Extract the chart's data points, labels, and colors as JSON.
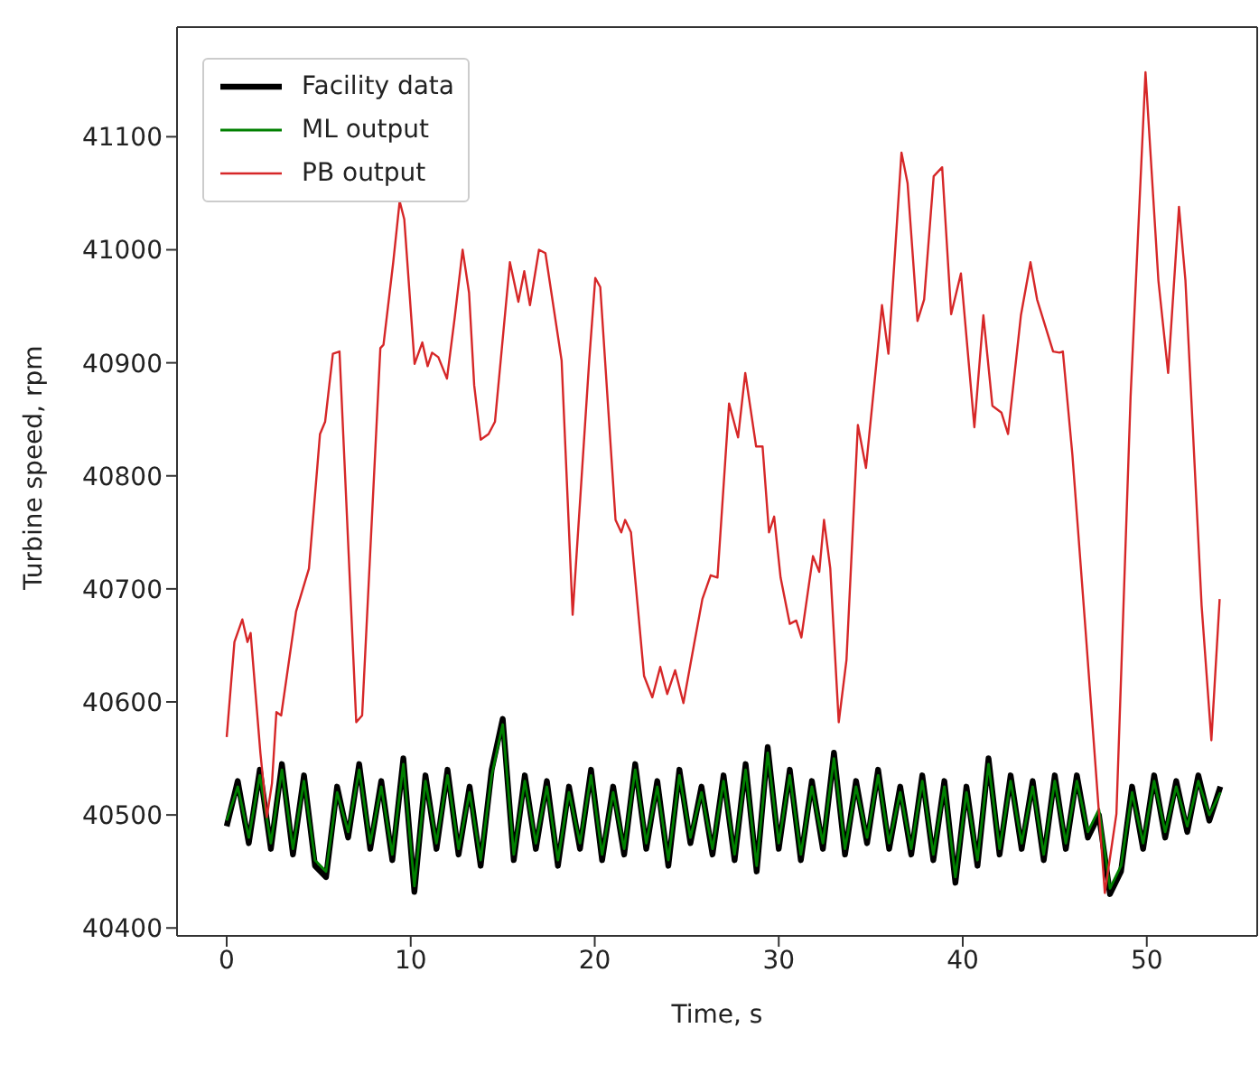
{
  "chart_data": {
    "type": "line",
    "xlabel": "Time, s",
    "ylabel": "Turbine speed, rpm",
    "xlim": [
      -2.7,
      56
    ],
    "ylim": [
      40393,
      41197
    ],
    "xticks": [
      0,
      10,
      20,
      30,
      40,
      50
    ],
    "yticks": [
      40400,
      40500,
      40600,
      40700,
      40800,
      40900,
      41000,
      41100
    ],
    "legend": "top left",
    "series": [
      {
        "name": "Facility data",
        "color": "#000000",
        "x": [
          0,
          0.6,
          1.2,
          1.8,
          2.4,
          3.0,
          3.6,
          4.2,
          4.8,
          5.4,
          6.0,
          6.6,
          7.2,
          7.8,
          8.4,
          9.0,
          9.6,
          10.2,
          10.8,
          11.4,
          12.0,
          12.6,
          13.2,
          13.8,
          14.4,
          15.0,
          15.6,
          16.2,
          16.8,
          17.4,
          18.0,
          18.6,
          19.2,
          19.8,
          20.4,
          21.0,
          21.6,
          22.2,
          22.8,
          23.4,
          24.0,
          24.6,
          25.2,
          25.8,
          26.4,
          27.0,
          27.6,
          28.2,
          28.8,
          29.4,
          30.0,
          30.6,
          31.2,
          31.8,
          32.4,
          33.0,
          33.6,
          34.2,
          34.8,
          35.4,
          36.0,
          36.6,
          37.2,
          37.8,
          38.4,
          39.0,
          39.6,
          40.2,
          40.8,
          41.4,
          42.0,
          42.6,
          43.2,
          43.8,
          44.4,
          45.0,
          45.6,
          46.2,
          46.8,
          47.4,
          48.0,
          48.6,
          49.2,
          49.8,
          50.4,
          51.0,
          51.6,
          52.2,
          52.8,
          53.4,
          54.0
        ],
        "values": [
          40490,
          40530,
          40475,
          40540,
          40470,
          40545,
          40465,
          40535,
          40455,
          40445,
          40525,
          40480,
          40545,
          40470,
          40530,
          40460,
          40550,
          40432,
          40535,
          40470,
          40540,
          40465,
          40525,
          40455,
          40540,
          40585,
          40460,
          40535,
          40470,
          40530,
          40455,
          40525,
          40470,
          40540,
          40460,
          40525,
          40465,
          40545,
          40470,
          40530,
          40455,
          40540,
          40475,
          40525,
          40465,
          40535,
          40460,
          40545,
          40450,
          40560,
          40470,
          40540,
          40460,
          40530,
          40470,
          40555,
          40465,
          40530,
          40475,
          40540,
          40470,
          40525,
          40465,
          40535,
          40460,
          40530,
          40440,
          40525,
          40455,
          40550,
          40465,
          40535,
          40470,
          40530,
          40460,
          40535,
          40470,
          40535,
          40480,
          40500,
          40430,
          40450,
          40525,
          40470,
          40535,
          40480,
          40530,
          40485,
          40535,
          40495,
          40525
        ]
      },
      {
        "name": "ML output",
        "color": "#008000",
        "x": [
          0,
          0.6,
          1.2,
          1.8,
          2.4,
          3.0,
          3.6,
          4.2,
          4.8,
          5.4,
          6.0,
          6.6,
          7.2,
          7.8,
          8.4,
          9.0,
          9.6,
          10.2,
          10.8,
          11.4,
          12.0,
          12.6,
          13.2,
          13.8,
          14.4,
          15.0,
          15.6,
          16.2,
          16.8,
          17.4,
          18.0,
          18.6,
          19.2,
          19.8,
          20.4,
          21.0,
          21.6,
          22.2,
          22.8,
          23.4,
          24.0,
          24.6,
          25.2,
          25.8,
          26.4,
          27.0,
          27.6,
          28.2,
          28.8,
          29.4,
          30.0,
          30.6,
          31.2,
          31.8,
          32.4,
          33.0,
          33.6,
          34.2,
          34.8,
          35.4,
          36.0,
          36.6,
          37.2,
          37.8,
          38.4,
          39.0,
          39.6,
          40.2,
          40.8,
          41.4,
          42.0,
          42.6,
          43.2,
          43.8,
          44.4,
          45.0,
          45.6,
          46.2,
          46.8,
          47.4,
          48.0,
          48.6,
          49.2,
          49.8,
          50.4,
          51.0,
          51.6,
          52.2,
          52.8,
          53.4,
          54.0
        ],
        "values": [
          40495,
          40525,
          40480,
          40535,
          40475,
          40540,
          40470,
          40530,
          40460,
          40450,
          40520,
          40485,
          40540,
          40475,
          40525,
          40465,
          40545,
          40437,
          40530,
          40475,
          40535,
          40470,
          40520,
          40460,
          40535,
          40580,
          40465,
          40530,
          40475,
          40525,
          40460,
          40520,
          40475,
          40535,
          40465,
          40520,
          40470,
          40540,
          40475,
          40525,
          40460,
          40535,
          40480,
          40520,
          40470,
          40530,
          40465,
          40540,
          40455,
          40555,
          40475,
          40535,
          40465,
          40525,
          40475,
          40550,
          40470,
          40525,
          40480,
          40535,
          40475,
          40520,
          40470,
          40530,
          40465,
          40525,
          40445,
          40520,
          40460,
          40545,
          40470,
          40530,
          40475,
          40525,
          40465,
          40530,
          40475,
          40530,
          40485,
          40505,
          40435,
          40455,
          40520,
          40475,
          40530,
          40485,
          40525,
          40490,
          40530,
          40500,
          40520
        ]
      },
      {
        "name": "PB output",
        "color": "#d62728",
        "x": [
          0,
          0.42,
          0.85,
          1.13,
          1.3,
          1.83,
          2.18,
          2.46,
          2.7,
          2.96,
          3.77,
          4.47,
          5.07,
          5.35,
          5.77,
          6.13,
          7.04,
          7.36,
          8.35,
          8.52,
          9.05,
          9.4,
          9.65,
          10.21,
          10.63,
          10.92,
          11.16,
          11.5,
          11.97,
          12.39,
          12.82,
          13.17,
          13.45,
          13.8,
          14.23,
          14.58,
          15.39,
          15.85,
          16.17,
          16.48,
          16.97,
          17.32,
          18.2,
          18.8,
          19.7,
          20.03,
          20.3,
          21.13,
          21.44,
          21.65,
          21.97,
          22.68,
          23.13,
          23.56,
          23.94,
          24.37,
          24.82,
          25.42,
          25.85,
          26.3,
          26.67,
          27.3,
          27.79,
          28.18,
          28.77,
          29.12,
          29.47,
          29.75,
          30.1,
          30.6,
          30.95,
          31.23,
          31.86,
          32.2,
          32.46,
          32.8,
          33.26,
          33.68,
          34.3,
          34.74,
          35.37,
          35.61,
          35.96,
          36.67,
          37.0,
          37.54,
          37.9,
          38.42,
          38.88,
          39.37,
          39.9,
          40.63,
          41.12,
          41.61,
          42.1,
          42.46,
          43.16,
          43.68,
          44.04,
          44.91,
          45.26,
          45.44,
          45.96,
          46.67,
          47.72,
          48.35,
          49.12,
          49.93,
          50.63,
          51.16,
          51.75,
          52.1,
          52.98,
          53.51,
          53.96
        ],
        "values": [
          40569,
          40653,
          40673,
          40653,
          40661,
          40555,
          40498,
          40528,
          40591,
          40588,
          40680,
          40718,
          40837,
          40848,
          40908,
          40910,
          40582,
          40588,
          40913,
          40916,
          40989,
          41043,
          41027,
          40899,
          40918,
          40897,
          40909,
          40905,
          40886,
          40940,
          41000,
          40962,
          40880,
          40832,
          40837,
          40848,
          40989,
          40954,
          40981,
          40951,
          41000,
          40997,
          40902,
          40677,
          40902,
          40975,
          40967,
          40761,
          40750,
          40761,
          40750,
          40623,
          40604,
          40631,
          40607,
          40628,
          40599,
          40653,
          40691,
          40712,
          40710,
          40864,
          40834,
          40891,
          40826,
          40826,
          40750,
          40764,
          40710,
          40669,
          40672,
          40657,
          40729,
          40715,
          40761,
          40718,
          40582,
          40637,
          40845,
          40807,
          40910,
          40951,
          40908,
          41086,
          41059,
          40937,
          40956,
          41065,
          41073,
          40943,
          40979,
          40843,
          40942,
          40862,
          40856,
          40837,
          40942,
          40989,
          40956,
          40910,
          40909,
          40910,
          40818,
          40664,
          40431,
          40501,
          40870,
          41157,
          40973,
          40891,
          41038,
          40973,
          40685,
          40566,
          40691
        ]
      }
    ]
  }
}
